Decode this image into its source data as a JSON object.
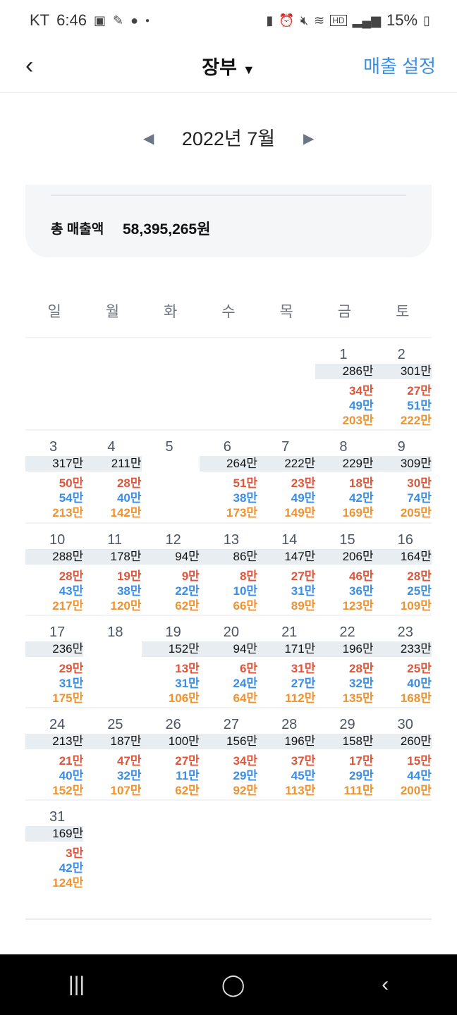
{
  "status": {
    "carrier": "KT",
    "time": "6:46",
    "battery": "15%",
    "icons_left": [
      "gallery-icon",
      "feather-icon",
      "chat-icon",
      "dot-icon"
    ],
    "icons_right": [
      "battery-saver-icon",
      "alarm-icon",
      "mute-icon",
      "wifi-icon",
      "hd-icon",
      "signal-icon",
      "battery-icon"
    ]
  },
  "header": {
    "title": "장부",
    "settings": "매출 설정"
  },
  "month": {
    "label": "2022년 7월"
  },
  "summary": {
    "label": "총 매출액",
    "value": "58,395,265원"
  },
  "weekdays": [
    "일",
    "월",
    "화",
    "수",
    "목",
    "금",
    "토"
  ],
  "colors": {
    "red": "#e0553a",
    "blue": "#3a8ee6",
    "orange": "#f0922e",
    "total_bg": "#e8edf1"
  },
  "first_weekday": 5,
  "days": [
    {
      "d": "1",
      "t": "286만",
      "r": "34만",
      "b": "49만",
      "o": "203만"
    },
    {
      "d": "2",
      "t": "301만",
      "r": "27만",
      "b": "51만",
      "o": "222만"
    },
    {
      "d": "3",
      "t": "317만",
      "r": "50만",
      "b": "54만",
      "o": "213만"
    },
    {
      "d": "4",
      "t": "211만",
      "r": "28만",
      "b": "40만",
      "o": "142만"
    },
    {
      "d": "5"
    },
    {
      "d": "6",
      "t": "264만",
      "r": "51만",
      "b": "38만",
      "o": "173만"
    },
    {
      "d": "7",
      "t": "222만",
      "r": "23만",
      "b": "49만",
      "o": "149만"
    },
    {
      "d": "8",
      "t": "229만",
      "r": "18만",
      "b": "42만",
      "o": "169만"
    },
    {
      "d": "9",
      "t": "309만",
      "r": "30만",
      "b": "74만",
      "o": "205만"
    },
    {
      "d": "10",
      "t": "288만",
      "r": "28만",
      "b": "43만",
      "o": "217만"
    },
    {
      "d": "11",
      "t": "178만",
      "r": "19만",
      "b": "38만",
      "o": "120만"
    },
    {
      "d": "12",
      "t": "94만",
      "r": "9만",
      "b": "22만",
      "o": "62만"
    },
    {
      "d": "13",
      "t": "86만",
      "r": "8만",
      "b": "10만",
      "o": "66만"
    },
    {
      "d": "14",
      "t": "147만",
      "r": "27만",
      "b": "31만",
      "o": "89만"
    },
    {
      "d": "15",
      "t": "206만",
      "r": "46만",
      "b": "36만",
      "o": "123만"
    },
    {
      "d": "16",
      "t": "164만",
      "r": "28만",
      "b": "25만",
      "o": "109만"
    },
    {
      "d": "17",
      "t": "236만",
      "r": "29만",
      "b": "31만",
      "o": "175만"
    },
    {
      "d": "18"
    },
    {
      "d": "19",
      "t": "152만",
      "r": "13만",
      "b": "31만",
      "o": "106만"
    },
    {
      "d": "20",
      "t": "94만",
      "r": "6만",
      "b": "24만",
      "o": "64만"
    },
    {
      "d": "21",
      "t": "171만",
      "r": "31만",
      "b": "27만",
      "o": "112만"
    },
    {
      "d": "22",
      "t": "196만",
      "r": "28만",
      "b": "32만",
      "o": "135만"
    },
    {
      "d": "23",
      "t": "233만",
      "r": "25만",
      "b": "40만",
      "o": "168만"
    },
    {
      "d": "24",
      "t": "213만",
      "r": "21만",
      "b": "40만",
      "o": "152만"
    },
    {
      "d": "25",
      "t": "187만",
      "r": "47만",
      "b": "32만",
      "o": "107만"
    },
    {
      "d": "26",
      "t": "100만",
      "r": "27만",
      "b": "11만",
      "o": "62만"
    },
    {
      "d": "27",
      "t": "156만",
      "r": "34만",
      "b": "29만",
      "o": "92만"
    },
    {
      "d": "28",
      "t": "196만",
      "r": "37만",
      "b": "45만",
      "o": "113만"
    },
    {
      "d": "29",
      "t": "158만",
      "r": "17만",
      "b": "29만",
      "o": "111만"
    },
    {
      "d": "30",
      "t": "260만",
      "r": "15만",
      "b": "44만",
      "o": "200만"
    },
    {
      "d": "31",
      "t": "169만",
      "r": "3만",
      "b": "42만",
      "o": "124만"
    }
  ]
}
